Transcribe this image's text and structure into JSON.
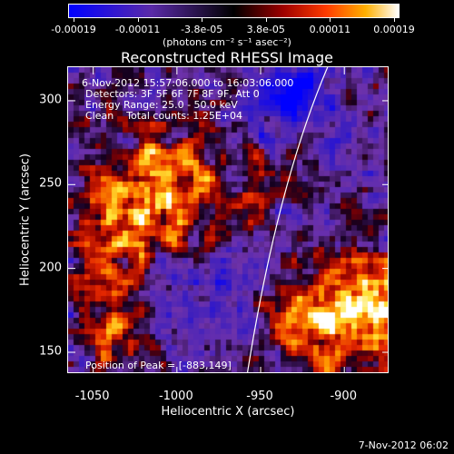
{
  "colorbar": {
    "ticks": [
      "-0.00019",
      "-0.00011",
      "-3.8e-05",
      "3.8e-05",
      "0.00011",
      "0.00019"
    ],
    "units": "(photons cm⁻² s⁻¹ asec⁻²)"
  },
  "chart_data": {
    "type": "heatmap",
    "title": "Reconstructed RHESSI Image",
    "xlabel": "Heliocentric X (arcsec)",
    "ylabel": "Heliocentric Y (arcsec)",
    "xlim": [
      -1065,
      -873
    ],
    "ylim": [
      137,
      320
    ],
    "x_ticks": [
      "-1050",
      "-1000",
      "-950",
      "-900"
    ],
    "x_tick_values": [
      -1050,
      -1000,
      -950,
      -900
    ],
    "y_ticks": [
      "150",
      "200",
      "250",
      "300"
    ],
    "y_tick_values": [
      150,
      200,
      250,
      300
    ],
    "colorbar_range": [
      -0.00019,
      0.00019
    ],
    "colormap": "blue-purple-black-red-orange-yellow-white",
    "annotations": {
      "time": "6-Nov-2012 15:57:06.000 to 16:03:06.000",
      "detectors": "Detectors: 3F 5F 6F 7F 8F 9F, Att 0",
      "energy": "Energy Range: 25.0 - 50.0 keV",
      "clean": "Clean    Total counts: 1.25E+04",
      "peak": "Position of Peak = [-883,149]"
    },
    "limb_curve": [
      [
        -958,
        137
      ],
      [
        -940,
        250
      ],
      [
        -910,
        320
      ]
    ]
  },
  "timestamp": "7-Nov-2012 06:02"
}
